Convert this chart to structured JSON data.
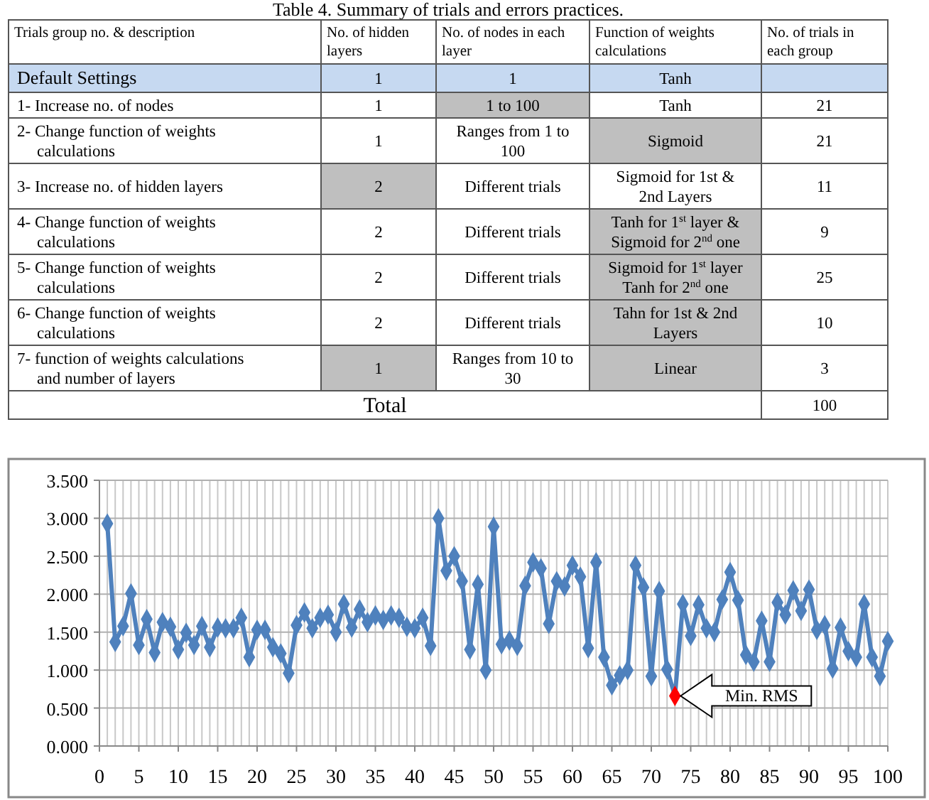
{
  "chart_data": [
    {
      "type": "other",
      "title": "Table 4. Summary of trials and errors practices.",
      "categories": [
        "Trials group no. & description",
        "No. of hidden layers",
        "No. of nodes in each layer",
        "Function of weights calculations",
        "No. of trials in each group"
      ],
      "y_categories": [
        "Default Settings",
        "1- Increase no. of nodes",
        "2- Change function of weights calculations",
        "3- Increase no. of hidden layers",
        "4- Change function of weights calculations",
        "5- Change function of weights calculations",
        "6- Change function of weights calculations",
        "7- function of weights calculations and number of layers",
        "Total"
      ],
      "cell_labels": [
        [
          "1",
          "1",
          "Tanh",
          null
        ],
        [
          "1",
          "1 to 100",
          "Tanh",
          "21"
        ],
        [
          "1",
          "Ranges from 1 to 100",
          "Sigmoid",
          "21"
        ],
        [
          "2",
          "Different trials",
          "Sigmoid for 1st & 2nd Layers",
          "11"
        ],
        [
          "2",
          "Different trials",
          "Tanh for 1$^{st}$ layer & Sigmoid for 2$^{nd}$ one",
          "9"
        ],
        [
          "2",
          "Different trials",
          "Sigmoid for 1$^{st}$ layer Tanh for 2$^{nd}$ one",
          "25"
        ],
        [
          "2",
          "Different trials",
          "Tahn for 1st & 2nd Layers",
          "10"
        ],
        [
          "1",
          "Ranges from 10 to 30",
          "Linear",
          "3"
        ],
        [
          null,
          null,
          null,
          "100"
        ]
      ],
      "colors": [
        [
          "#c6d9f1",
          "#c6d9f1",
          "#c6d9f1",
          "#c6d9f1",
          "#c6d9f1"
        ],
        [
          null,
          null,
          "#bfbfbf",
          null,
          null
        ],
        [
          null,
          null,
          null,
          "#bfbfbf",
          null
        ],
        [
          null,
          "#bfbfbf",
          null,
          null,
          null
        ],
        [
          null,
          null,
          null,
          "#bfbfbf",
          null
        ],
        [
          null,
          null,
          null,
          "#bfbfbf",
          null
        ],
        [
          null,
          null,
          null,
          "#bfbfbf",
          null
        ],
        [
          null,
          "#bfbfbf",
          null,
          "#bfbfbf",
          null
        ],
        [
          null,
          null,
          null,
          null,
          null
        ]
      ]
    },
    {
      "type": "line",
      "marker": "diamond",
      "grid": true,
      "x": [
        1,
        2,
        3,
        4,
        5,
        6,
        7,
        8,
        9,
        10,
        11,
        12,
        13,
        14,
        15,
        16,
        17,
        18,
        19,
        20,
        21,
        22,
        23,
        24,
        25,
        26,
        27,
        28,
        29,
        30,
        31,
        32,
        33,
        34,
        35,
        36,
        37,
        38,
        39,
        40,
        41,
        42,
        43,
        44,
        45,
        46,
        47,
        48,
        49,
        50,
        51,
        52,
        53,
        54,
        55,
        56,
        57,
        58,
        59,
        60,
        61,
        62,
        63,
        64,
        65,
        66,
        67,
        68,
        69,
        70,
        71,
        72,
        73,
        74,
        75,
        76,
        77,
        78,
        79,
        80,
        81,
        82,
        83,
        84,
        85,
        86,
        87,
        88,
        89,
        90,
        91,
        92,
        93,
        94,
        95,
        96,
        97,
        98,
        99,
        100
      ],
      "series": [
        {
          "color": "#4f81bd",
          "colors": [
            "#4f81bd",
            "#4f81bd",
            "#4f81bd",
            "#4f81bd",
            "#4f81bd",
            "#4f81bd",
            "#4f81bd",
            "#4f81bd",
            "#4f81bd",
            "#4f81bd",
            "#4f81bd",
            "#4f81bd",
            "#4f81bd",
            "#4f81bd",
            "#4f81bd",
            "#4f81bd",
            "#4f81bd",
            "#4f81bd",
            "#4f81bd",
            "#4f81bd",
            "#4f81bd",
            "#4f81bd",
            "#4f81bd",
            "#4f81bd",
            "#4f81bd",
            "#4f81bd",
            "#4f81bd",
            "#4f81bd",
            "#4f81bd",
            "#4f81bd",
            "#4f81bd",
            "#4f81bd",
            "#4f81bd",
            "#4f81bd",
            "#4f81bd",
            "#4f81bd",
            "#4f81bd",
            "#4f81bd",
            "#4f81bd",
            "#4f81bd",
            "#4f81bd",
            "#4f81bd",
            "#4f81bd",
            "#4f81bd",
            "#4f81bd",
            "#4f81bd",
            "#4f81bd",
            "#4f81bd",
            "#4f81bd",
            "#4f81bd",
            "#4f81bd",
            "#4f81bd",
            "#4f81bd",
            "#4f81bd",
            "#4f81bd",
            "#4f81bd",
            "#4f81bd",
            "#4f81bd",
            "#4f81bd",
            "#4f81bd",
            "#4f81bd",
            "#4f81bd",
            "#4f81bd",
            "#4f81bd",
            "#4f81bd",
            "#4f81bd",
            "#4f81bd",
            "#4f81bd",
            "#4f81bd",
            "#4f81bd",
            "#4f81bd",
            "#4f81bd",
            "#ff0000",
            "#4f81bd",
            "#4f81bd",
            "#4f81bd",
            "#4f81bd",
            "#4f81bd",
            "#4f81bd",
            "#4f81bd",
            "#4f81bd",
            "#4f81bd",
            "#4f81bd",
            "#4f81bd",
            "#4f81bd",
            "#4f81bd",
            "#4f81bd",
            "#4f81bd",
            "#4f81bd",
            "#4f81bd",
            "#4f81bd",
            "#4f81bd",
            "#4f81bd",
            "#4f81bd",
            "#4f81bd",
            "#4f81bd",
            "#4f81bd",
            "#4f81bd",
            "#4f81bd",
            "#4f81bd"
          ],
          "values": [
            2.93,
            1.37,
            1.58,
            2.01,
            1.33,
            1.67,
            1.23,
            1.63,
            1.57,
            1.27,
            1.49,
            1.33,
            1.58,
            1.3,
            1.56,
            1.55,
            1.55,
            1.69,
            1.17,
            1.53,
            1.53,
            1.3,
            1.22,
            0.96,
            1.59,
            1.76,
            1.55,
            1.69,
            1.73,
            1.5,
            1.87,
            1.56,
            1.8,
            1.63,
            1.72,
            1.66,
            1.72,
            1.69,
            1.57,
            1.55,
            1.69,
            1.32,
            3.0,
            2.31,
            2.5,
            2.17,
            1.27,
            2.13,
            1.0,
            2.89,
            1.34,
            1.39,
            1.32,
            2.11,
            2.42,
            2.34,
            1.61,
            2.17,
            2.1,
            2.38,
            2.23,
            1.29,
            2.42,
            1.17,
            0.8,
            0.93,
            1.0,
            2.38,
            2.09,
            0.92,
            2.04,
            1.01,
            0.66,
            1.87,
            1.45,
            1.86,
            1.55,
            1.5,
            1.93,
            2.29,
            1.92,
            1.2,
            1.11,
            1.65,
            1.11,
            1.89,
            1.73,
            2.05,
            1.78,
            2.06,
            1.53,
            1.59,
            1.02,
            1.56,
            1.25,
            1.17,
            1.87,
            1.17,
            0.92,
            1.38
          ]
        }
      ],
      "xlim": [
        0,
        100
      ],
      "xticks": [
        0,
        {
          "value": 1,
          "label": null
        },
        {
          "value": 2,
          "label": null
        },
        {
          "value": 3,
          "label": null
        },
        {
          "value": 4,
          "label": null
        },
        5,
        {
          "value": 6,
          "label": null
        },
        {
          "value": 7,
          "label": null
        },
        {
          "value": 8,
          "label": null
        },
        {
          "value": 9,
          "label": null
        },
        10,
        {
          "value": 11,
          "label": null
        },
        {
          "value": 12,
          "label": null
        },
        {
          "value": 13,
          "label": null
        },
        {
          "value": 14,
          "label": null
        },
        15,
        {
          "value": 16,
          "label": null
        },
        {
          "value": 17,
          "label": null
        },
        {
          "value": 18,
          "label": null
        },
        {
          "value": 19,
          "label": null
        },
        20,
        {
          "value": 21,
          "label": null
        },
        {
          "value": 22,
          "label": null
        },
        {
          "value": 23,
          "label": null
        },
        {
          "value": 24,
          "label": null
        },
        25,
        {
          "value": 26,
          "label": null
        },
        {
          "value": 27,
          "label": null
        },
        {
          "value": 28,
          "label": null
        },
        {
          "value": 29,
          "label": null
        },
        30,
        {
          "value": 31,
          "label": null
        },
        {
          "value": 32,
          "label": null
        },
        {
          "value": 33,
          "label": null
        },
        {
          "value": 34,
          "label": null
        },
        35,
        {
          "value": 36,
          "label": null
        },
        {
          "value": 37,
          "label": null
        },
        {
          "value": 38,
          "label": null
        },
        {
          "value": 39,
          "label": null
        },
        40,
        {
          "value": 41,
          "label": null
        },
        {
          "value": 42,
          "label": null
        },
        {
          "value": 43,
          "label": null
        },
        {
          "value": 44,
          "label": null
        },
        45,
        {
          "value": 46,
          "label": null
        },
        {
          "value": 47,
          "label": null
        },
        {
          "value": 48,
          "label": null
        },
        {
          "value": 49,
          "label": null
        },
        50,
        {
          "value": 51,
          "label": null
        },
        {
          "value": 52,
          "label": null
        },
        {
          "value": 53,
          "label": null
        },
        {
          "value": 54,
          "label": null
        },
        55,
        {
          "value": 56,
          "label": null
        },
        {
          "value": 57,
          "label": null
        },
        {
          "value": 58,
          "label": null
        },
        {
          "value": 59,
          "label": null
        },
        60,
        {
          "value": 61,
          "label": null
        },
        {
          "value": 62,
          "label": null
        },
        {
          "value": 63,
          "label": null
        },
        {
          "value": 64,
          "label": null
        },
        65,
        {
          "value": 66,
          "label": null
        },
        {
          "value": 67,
          "label": null
        },
        {
          "value": 68,
          "label": null
        },
        {
          "value": 69,
          "label": null
        },
        70,
        {
          "value": 71,
          "label": null
        },
        {
          "value": 72,
          "label": null
        },
        {
          "value": 73,
          "label": null
        },
        {
          "value": 74,
          "label": null
        },
        75,
        {
          "value": 76,
          "label": null
        },
        {
          "value": 77,
          "label": null
        },
        {
          "value": 78,
          "label": null
        },
        {
          "value": 79,
          "label": null
        },
        80,
        {
          "value": 81,
          "label": null
        },
        {
          "value": 82,
          "label": null
        },
        {
          "value": 83,
          "label": null
        },
        {
          "value": 84,
          "label": null
        },
        85,
        {
          "value": 86,
          "label": null
        },
        {
          "value": 87,
          "label": null
        },
        {
          "value": 88,
          "label": null
        },
        {
          "value": 89,
          "label": null
        },
        90,
        {
          "value": 91,
          "label": null
        },
        {
          "value": 92,
          "label": null
        },
        {
          "value": 93,
          "label": null
        },
        {
          "value": 94,
          "label": null
        },
        95,
        {
          "value": 96,
          "label": null
        },
        {
          "value": 97,
          "label": null
        },
        {
          "value": 98,
          "label": null
        },
        {
          "value": 99,
          "label": null
        },
        100
      ],
      "ylim": [
        0,
        3.5
      ],
      "yticks": [
        {
          "value": 0,
          "label": "0.000"
        },
        {
          "value": 0.5,
          "label": "0.500"
        },
        {
          "value": 1,
          "label": "1.000"
        },
        {
          "value": 1.5,
          "label": "1.500"
        },
        {
          "value": 2,
          "label": "2.000"
        },
        {
          "value": 2.5,
          "label": "2.500"
        },
        {
          "value": 3,
          "label": "3.000"
        },
        {
          "value": 3.5,
          "label": "3.500"
        }
      ],
      "annotations": [
        {
          "text": "Min. RMS",
          "x": 73,
          "y": 0.66
        }
      ]
    }
  ]
}
